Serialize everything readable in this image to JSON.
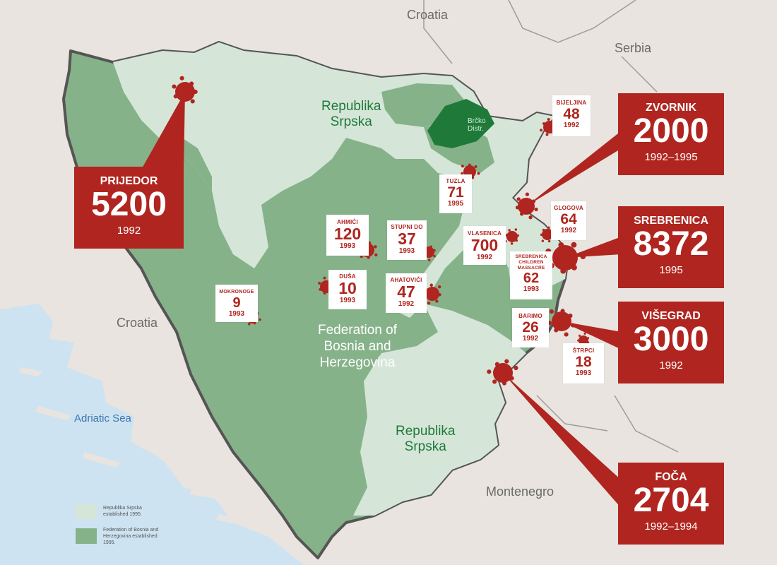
{
  "labels": {
    "croatia_north": "Croatia",
    "croatia_west": "Croatia",
    "serbia": "Serbia",
    "montenegro": "Montenegro",
    "adriatic": "Adriatic Sea",
    "rs_north": "Republika\nSrpska",
    "rs_south": "Republika\nSrpska",
    "federation": "Federation of\nBosnia and\nHerzegovina",
    "brcko": "Brčko\nDistr."
  },
  "big_sites": [
    {
      "name": "PRIJEDOR",
      "victims": "5200",
      "years": "1992"
    },
    {
      "name": "ZVORNIK",
      "victims": "2000",
      "years": "1992–1995"
    },
    {
      "name": "SREBRENICA",
      "victims": "8372",
      "years": "1995"
    },
    {
      "name": "VIŠEGRAD",
      "victims": "3000",
      "years": "1992"
    },
    {
      "name": "FOČA",
      "victims": "2704",
      "years": "1992–1994"
    }
  ],
  "small_sites": [
    {
      "name": "BIJELJINA",
      "victims": "48",
      "years": "1992"
    },
    {
      "name": "TUZLA",
      "victims": "71",
      "years": "1995"
    },
    {
      "name": "GLOGOVA",
      "victims": "64",
      "years": "1992"
    },
    {
      "name": "AHMIĆI",
      "victims": "120",
      "years": "1993"
    },
    {
      "name": "STUPNI DO",
      "victims": "37",
      "years": "1993"
    },
    {
      "name": "VLASENICA",
      "victims": "700",
      "years": "1992"
    },
    {
      "name": "SREBRENICA CHILDREN MASSACRE",
      "victims": "62",
      "years": "1993"
    },
    {
      "name": "MOKRONOGE",
      "victims": "9",
      "years": "1993"
    },
    {
      "name": "DUŠA",
      "victims": "10",
      "years": "1993"
    },
    {
      "name": "AHATOVIĆI",
      "victims": "47",
      "years": "1992"
    },
    {
      "name": "BARIMO",
      "victims": "26",
      "years": "1992"
    },
    {
      "name": "ŠTRPCI",
      "victims": "18",
      "years": "1993"
    }
  ],
  "legend": [
    {
      "text": "Republika Srpska established 1995.",
      "color": "#d5e6d8"
    },
    {
      "text": "Federation of Bosnia and Herzegovina established 1995.",
      "color": "#86b28a"
    }
  ],
  "colors": {
    "land": "#e9e4df",
    "sea": "#cde3f1",
    "republika_srpska": "#d5e6d8",
    "federation": "#86b28a",
    "brcko": "#1f7a3a",
    "marker": "#b0251f"
  }
}
